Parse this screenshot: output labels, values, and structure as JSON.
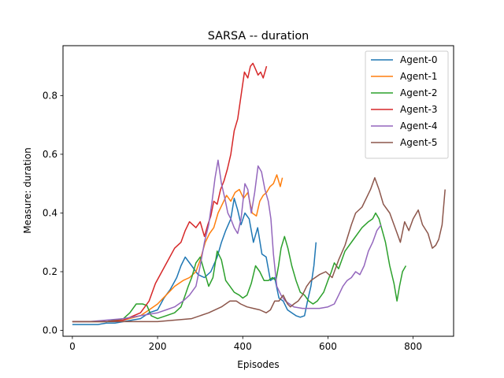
{
  "chart_data": {
    "type": "line",
    "title": "SARSA -- duration",
    "xlabel": "Episodes",
    "ylabel": "Measure: duration",
    "xlim": [
      -22,
      895
    ],
    "ylim": [
      -0.02,
      0.97
    ],
    "xticks": [
      0,
      200,
      400,
      600,
      800
    ],
    "yticks": [
      0.0,
      0.2,
      0.4,
      0.6,
      0.8
    ],
    "grid": false,
    "legend": "top-right",
    "series": [
      {
        "name": "Agent-0",
        "color": "#1f77b4",
        "x": [
          0,
          20,
          40,
          60,
          80,
          100,
          120,
          140,
          160,
          180,
          200,
          215,
          230,
          245,
          255,
          265,
          280,
          295,
          310,
          325,
          340,
          350,
          360,
          372,
          380,
          388,
          396,
          405,
          415,
          425,
          435,
          445,
          455,
          465,
          475,
          485,
          495,
          505,
          515,
          525,
          535,
          545,
          552,
          560,
          567,
          572
        ],
        "y": [
          0.02,
          0.02,
          0.02,
          0.02,
          0.025,
          0.025,
          0.03,
          0.035,
          0.04,
          0.06,
          0.07,
          0.11,
          0.14,
          0.18,
          0.22,
          0.25,
          0.22,
          0.19,
          0.18,
          0.2,
          0.25,
          0.3,
          0.34,
          0.38,
          0.45,
          0.41,
          0.36,
          0.4,
          0.38,
          0.3,
          0.35,
          0.26,
          0.25,
          0.17,
          0.18,
          0.11,
          0.1,
          0.07,
          0.06,
          0.05,
          0.045,
          0.05,
          0.1,
          0.15,
          0.22,
          0.3
        ]
      },
      {
        "name": "Agent-1",
        "color": "#ff7f0e",
        "x": [
          0,
          40,
          80,
          120,
          160,
          180,
          200,
          220,
          240,
          260,
          275,
          290,
          300,
          312,
          322,
          332,
          342,
          352,
          362,
          372,
          382,
          392,
          402,
          412,
          422,
          432,
          440,
          448,
          456,
          464,
          472,
          480,
          488,
          493
        ],
        "y": [
          0.03,
          0.03,
          0.03,
          0.035,
          0.05,
          0.07,
          0.09,
          0.12,
          0.15,
          0.17,
          0.18,
          0.2,
          0.24,
          0.3,
          0.33,
          0.35,
          0.4,
          0.43,
          0.46,
          0.44,
          0.47,
          0.48,
          0.45,
          0.47,
          0.4,
          0.39,
          0.44,
          0.46,
          0.47,
          0.49,
          0.5,
          0.53,
          0.49,
          0.52
        ]
      },
      {
        "name": "Agent-2",
        "color": "#2ca02c",
        "x": [
          0,
          40,
          80,
          120,
          135,
          150,
          165,
          175,
          185,
          200,
          220,
          240,
          255,
          265,
          272,
          280,
          290,
          300,
          310,
          320,
          330,
          340,
          350,
          360,
          370,
          380,
          392,
          400,
          410,
          420,
          430,
          440,
          450,
          460,
          470,
          478,
          484,
          490,
          498,
          506,
          515,
          525,
          535,
          545,
          555,
          565,
          575,
          590,
          600,
          608,
          615,
          625,
          640,
          660,
          680,
          695,
          705,
          712,
          720,
          735,
          745,
          755,
          762,
          768,
          775,
          783
        ],
        "y": [
          0.03,
          0.03,
          0.03,
          0.04,
          0.06,
          0.09,
          0.09,
          0.085,
          0.05,
          0.04,
          0.05,
          0.06,
          0.08,
          0.12,
          0.15,
          0.18,
          0.23,
          0.25,
          0.2,
          0.15,
          0.18,
          0.27,
          0.24,
          0.17,
          0.15,
          0.13,
          0.12,
          0.11,
          0.12,
          0.16,
          0.22,
          0.2,
          0.17,
          0.17,
          0.18,
          0.17,
          0.22,
          0.28,
          0.32,
          0.28,
          0.22,
          0.17,
          0.13,
          0.12,
          0.1,
          0.09,
          0.1,
          0.13,
          0.17,
          0.2,
          0.23,
          0.21,
          0.27,
          0.31,
          0.35,
          0.37,
          0.38,
          0.4,
          0.38,
          0.3,
          0.22,
          0.16,
          0.1,
          0.15,
          0.2,
          0.22
        ]
      },
      {
        "name": "Agent-3",
        "color": "#d62728",
        "x": [
          0,
          40,
          80,
          120,
          160,
          180,
          195,
          210,
          225,
          240,
          255,
          265,
          275,
          290,
          300,
          310,
          318,
          325,
          332,
          340,
          348,
          356,
          364,
          372,
          380,
          388,
          396,
          404,
          412,
          418,
          424,
          430,
          436,
          442,
          448,
          452,
          456
        ],
        "y": [
          0.03,
          0.03,
          0.03,
          0.035,
          0.06,
          0.1,
          0.16,
          0.2,
          0.24,
          0.28,
          0.3,
          0.34,
          0.37,
          0.35,
          0.37,
          0.32,
          0.36,
          0.39,
          0.44,
          0.43,
          0.48,
          0.51,
          0.55,
          0.6,
          0.68,
          0.72,
          0.8,
          0.88,
          0.86,
          0.9,
          0.91,
          0.89,
          0.87,
          0.88,
          0.86,
          0.88,
          0.9
        ]
      },
      {
        "name": "Agent-4",
        "color": "#9467bd",
        "x": [
          0,
          40,
          80,
          120,
          160,
          200,
          220,
          240,
          260,
          275,
          290,
          300,
          310,
          320,
          328,
          335,
          342,
          350,
          358,
          365,
          372,
          380,
          388,
          396,
          405,
          412,
          420,
          428,
          436,
          444,
          452,
          460,
          466,
          472,
          480,
          490,
          500,
          520,
          540,
          560,
          580,
          600,
          615,
          625,
          635,
          645,
          655,
          665,
          675,
          685,
          695,
          705,
          715,
          725
        ],
        "y": [
          0.03,
          0.03,
          0.035,
          0.04,
          0.05,
          0.06,
          0.07,
          0.08,
          0.1,
          0.12,
          0.15,
          0.22,
          0.3,
          0.36,
          0.44,
          0.52,
          0.58,
          0.5,
          0.45,
          0.4,
          0.38,
          0.35,
          0.33,
          0.38,
          0.5,
          0.48,
          0.4,
          0.47,
          0.56,
          0.54,
          0.48,
          0.44,
          0.38,
          0.26,
          0.15,
          0.12,
          0.1,
          0.08,
          0.075,
          0.075,
          0.075,
          0.08,
          0.09,
          0.12,
          0.15,
          0.17,
          0.18,
          0.2,
          0.19,
          0.22,
          0.27,
          0.3,
          0.34,
          0.36
        ]
      },
      {
        "name": "Agent-5",
        "color": "#8c564b",
        "x": [
          0,
          40,
          80,
          120,
          160,
          200,
          240,
          280,
          320,
          350,
          370,
          385,
          395,
          410,
          425,
          440,
          455,
          465,
          475,
          485,
          495,
          505,
          512,
          520,
          530,
          540,
          550,
          560,
          570,
          580,
          595,
          610,
          625,
          640,
          655,
          665,
          680,
          690,
          700,
          710,
          720,
          730,
          745,
          760,
          770,
          780,
          790,
          800,
          812,
          822,
          835,
          845,
          853,
          860,
          868,
          875
        ],
        "y": [
          0.03,
          0.03,
          0.03,
          0.03,
          0.03,
          0.03,
          0.035,
          0.04,
          0.06,
          0.08,
          0.1,
          0.1,
          0.09,
          0.08,
          0.075,
          0.07,
          0.06,
          0.07,
          0.1,
          0.1,
          0.12,
          0.09,
          0.08,
          0.09,
          0.1,
          0.12,
          0.15,
          0.17,
          0.18,
          0.19,
          0.2,
          0.18,
          0.24,
          0.29,
          0.36,
          0.4,
          0.42,
          0.45,
          0.48,
          0.52,
          0.48,
          0.43,
          0.4,
          0.34,
          0.3,
          0.37,
          0.34,
          0.38,
          0.41,
          0.36,
          0.33,
          0.28,
          0.29,
          0.31,
          0.36,
          0.48
        ]
      }
    ]
  }
}
